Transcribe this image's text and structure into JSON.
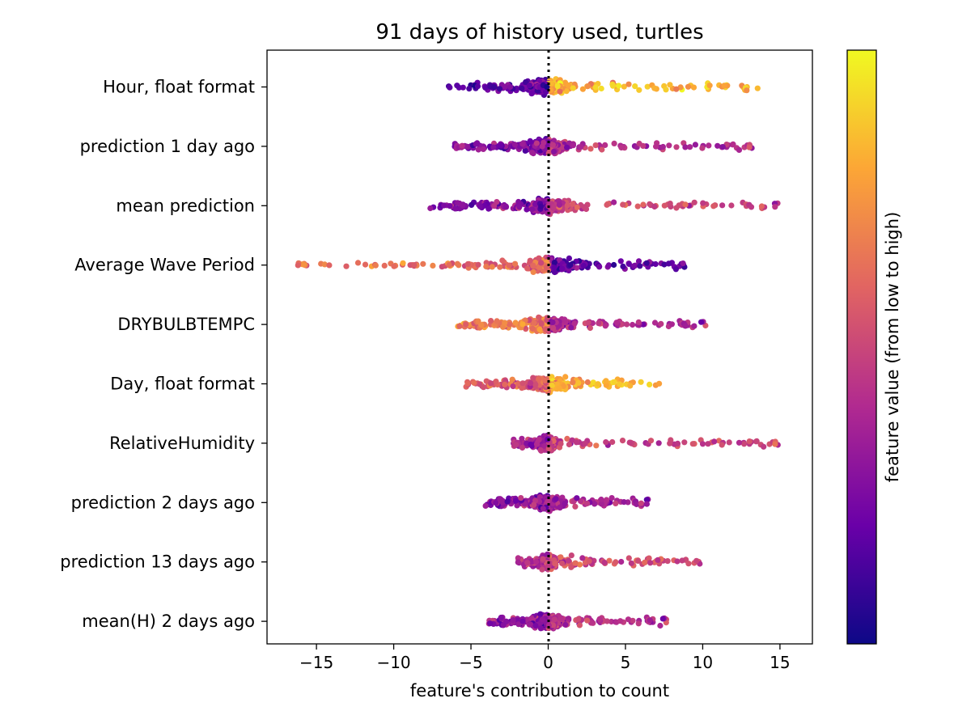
{
  "chart_data": {
    "type": "scatter",
    "subtype": "beeswarm",
    "title": "91 days of history used, turtles",
    "xlabel": "feature's contribution to count",
    "ylabel": "",
    "xlim": [
      -18.2,
      17.1
    ],
    "xticks": [
      -15,
      -10,
      -5,
      0,
      5,
      10,
      15
    ],
    "xtick_labels": [
      "−15",
      "−10",
      "−5",
      "0",
      "5",
      "10",
      "15"
    ],
    "reference_line": {
      "x": 0,
      "style": "dotted",
      "color": "#000000"
    },
    "colorbar": {
      "label": "feature value (from low to high)",
      "colormap": "plasma",
      "stops": [
        "#0d0887",
        "#6a00a8",
        "#b12a90",
        "#e16462",
        "#fca636",
        "#f0f921"
      ]
    },
    "grid": false,
    "legend": "none",
    "features": [
      {
        "name": "Hour, float format",
        "min": -6.5,
        "max": 15.3,
        "neg_color": 0.18,
        "pos_color": 0.82
      },
      {
        "name": "prediction 1 day ago",
        "min": -6.2,
        "max": 13.3,
        "neg_color": 0.25,
        "pos_color": 0.42
      },
      {
        "name": "mean prediction",
        "min": -7.9,
        "max": 15.4,
        "neg_color": 0.28,
        "pos_color": 0.5
      },
      {
        "name": "Average Wave Period",
        "min": -16.6,
        "max": 8.9,
        "neg_color": 0.62,
        "pos_color": 0.2
      },
      {
        "name": "DRYBULBTEMPC",
        "min": -6.1,
        "max": 10.4,
        "neg_color": 0.68,
        "pos_color": 0.4
      },
      {
        "name": "Day, float format",
        "min": -5.5,
        "max": 7.3,
        "neg_color": 0.55,
        "pos_color": 0.82
      },
      {
        "name": "RelativeHumidity",
        "min": -2.3,
        "max": 15.0,
        "neg_color": 0.35,
        "pos_color": 0.5
      },
      {
        "name": "prediction 2 days ago",
        "min": -4.2,
        "max": 6.7,
        "neg_color": 0.3,
        "pos_color": 0.38
      },
      {
        "name": "prediction 13 days ago",
        "min": -2.0,
        "max": 9.9,
        "neg_color": 0.4,
        "pos_color": 0.52
      },
      {
        "name": "mean(H) 2 days ago",
        "min": -4.0,
        "max": 7.8,
        "neg_color": 0.3,
        "pos_color": 0.42
      }
    ]
  }
}
